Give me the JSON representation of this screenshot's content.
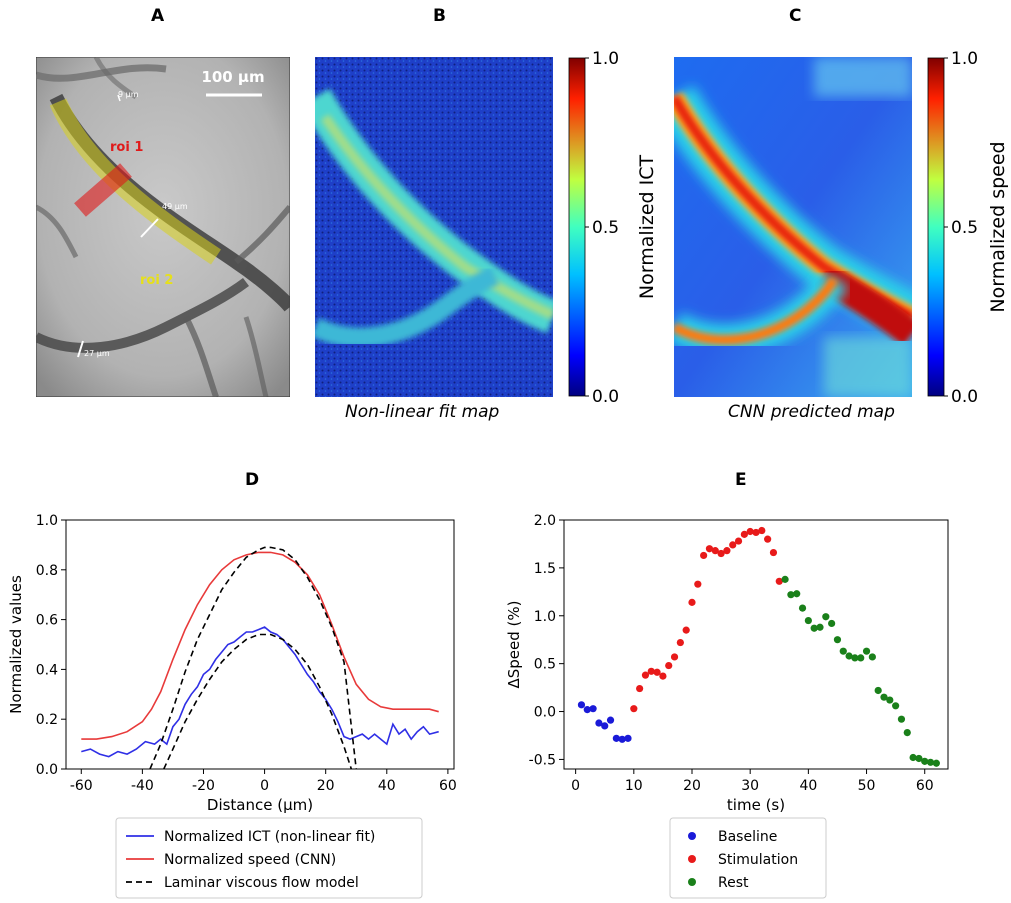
{
  "panels": {
    "A": {
      "letter": "A",
      "scale_bar": "100 µm",
      "roi1": "roi 1",
      "roi2": "roi 2",
      "diameters": [
        "9 µm",
        "49 µm",
        "27 µm"
      ]
    },
    "B": {
      "letter": "B",
      "caption": "Non-linear fit map",
      "colorbar": {
        "label": "Normalized ICT",
        "ticks": [
          "1.0",
          "0.5",
          "0.0"
        ]
      }
    },
    "C": {
      "letter": "C",
      "caption": "CNN predicted map",
      "colorbar": {
        "label": "Normalized speed",
        "ticks": [
          "1.0",
          "0.5",
          "0.0"
        ]
      }
    },
    "D": {
      "letter": "D"
    },
    "E": {
      "letter": "E"
    }
  },
  "colors": {
    "ict": "#2f2fe6",
    "speed": "#e83a3a",
    "model": "#000000",
    "baseline": "#1a1ad8",
    "stimulation": "#e81a1a",
    "rest": "#1a801a",
    "roi1": "#e01a1a",
    "roi2": "#e6e01a"
  },
  "chart_data": [
    {
      "id": "D",
      "type": "line",
      "xlabel": "Distance (µm)",
      "ylabel": "Normalized values",
      "xlim": [
        -65,
        62
      ],
      "ylim": [
        0,
        1.0
      ],
      "xticks": [
        -60,
        -40,
        -20,
        0,
        20,
        40,
        60
      ],
      "yticks": [
        0.0,
        0.2,
        0.4,
        0.6,
        0.8,
        1.0
      ],
      "legend_position": "below",
      "series": [
        {
          "name": "Normalized ICT (non-linear fit)",
          "style": "solid",
          "x": [
            -60,
            -57,
            -54,
            -51,
            -48,
            -45,
            -42,
            -39,
            -36,
            -34,
            -32,
            -30,
            -28,
            -26,
            -24,
            -22,
            -20,
            -18,
            -16,
            -14,
            -12,
            -10,
            -8,
            -6,
            -4,
            -2,
            0,
            2,
            4,
            6,
            8,
            10,
            12,
            14,
            16,
            18,
            20,
            22,
            24,
            26,
            28,
            30,
            32,
            34,
            36,
            38,
            40,
            42,
            44,
            46,
            48,
            50,
            52,
            54,
            57
          ],
          "y": [
            0.07,
            0.08,
            0.06,
            0.05,
            0.07,
            0.06,
            0.08,
            0.11,
            0.1,
            0.12,
            0.1,
            0.17,
            0.2,
            0.26,
            0.3,
            0.33,
            0.38,
            0.4,
            0.44,
            0.47,
            0.5,
            0.51,
            0.53,
            0.55,
            0.55,
            0.56,
            0.57,
            0.55,
            0.54,
            0.52,
            0.49,
            0.46,
            0.42,
            0.38,
            0.35,
            0.31,
            0.28,
            0.24,
            0.19,
            0.13,
            0.12,
            0.13,
            0.14,
            0.12,
            0.14,
            0.12,
            0.1,
            0.18,
            0.14,
            0.16,
            0.12,
            0.15,
            0.17,
            0.14,
            0.15
          ]
        },
        {
          "name": "Normalized speed (CNN)",
          "style": "solid",
          "x": [
            -60,
            -55,
            -50,
            -45,
            -40,
            -37,
            -34,
            -30,
            -26,
            -22,
            -18,
            -14,
            -10,
            -6,
            -2,
            0,
            2,
            6,
            10,
            14,
            18,
            22,
            26,
            30,
            34,
            38,
            42,
            46,
            50,
            54,
            57
          ],
          "y": [
            0.12,
            0.12,
            0.13,
            0.15,
            0.19,
            0.24,
            0.31,
            0.44,
            0.56,
            0.66,
            0.74,
            0.8,
            0.84,
            0.86,
            0.87,
            0.87,
            0.87,
            0.86,
            0.83,
            0.78,
            0.7,
            0.58,
            0.45,
            0.34,
            0.28,
            0.25,
            0.24,
            0.24,
            0.24,
            0.24,
            0.23
          ]
        },
        {
          "name": "Laminar viscous flow model",
          "style": "dashed",
          "x": [
            -37.5,
            -34,
            -30,
            -26,
            -22,
            -18,
            -14,
            -10,
            -6,
            -2,
            0,
            2,
            6,
            10,
            14,
            18,
            22,
            26,
            30
          ],
          "y": [
            0.0,
            0.1,
            0.24,
            0.39,
            0.52,
            0.62,
            0.72,
            0.79,
            0.85,
            0.88,
            0.89,
            0.89,
            0.88,
            0.84,
            0.77,
            0.68,
            0.57,
            0.43,
            0.0
          ]
        },
        {
          "name": "",
          "style": "dashed",
          "x": [
            -33,
            -30,
            -26,
            -22,
            -18,
            -14,
            -10,
            -6,
            -2,
            0,
            2,
            6,
            10,
            14,
            18,
            22,
            26,
            30,
            32
          ],
          "y": [
            0.0,
            0.08,
            0.19,
            0.28,
            0.36,
            0.43,
            0.48,
            0.52,
            0.54,
            0.54,
            0.54,
            0.52,
            0.48,
            0.42,
            0.33,
            0.22,
            0.09,
            -0.06,
            -0.14
          ]
        }
      ]
    },
    {
      "id": "E",
      "type": "scatter",
      "xlabel": "time (s)",
      "ylabel": "ΔSpeed (%)",
      "xlim": [
        -2,
        64
      ],
      "ylim": [
        -0.6,
        2.0
      ],
      "xticks": [
        0,
        10,
        20,
        30,
        40,
        50,
        60
      ],
      "yticks": [
        -0.5,
        0.0,
        0.5,
        1.0,
        1.5,
        2.0
      ],
      "legend_position": "below",
      "series": [
        {
          "name": "Baseline",
          "x": [
            1,
            2,
            3,
            4,
            5,
            6,
            7,
            8,
            9
          ],
          "y": [
            0.07,
            0.02,
            0.03,
            -0.12,
            -0.15,
            -0.09,
            -0.28,
            -0.29,
            -0.28
          ]
        },
        {
          "name": "Stimulation",
          "x": [
            10,
            11,
            12,
            13,
            14,
            15,
            16,
            17,
            18,
            19,
            20,
            21,
            22,
            23,
            24,
            25,
            26,
            27,
            28,
            29,
            30,
            31,
            32,
            33,
            34,
            35
          ],
          "y": [
            0.03,
            0.24,
            0.38,
            0.42,
            0.41,
            0.37,
            0.48,
            0.57,
            0.72,
            0.85,
            1.14,
            1.33,
            1.63,
            1.7,
            1.68,
            1.65,
            1.68,
            1.74,
            1.78,
            1.85,
            1.88,
            1.87,
            1.89,
            1.8,
            1.66,
            1.36
          ]
        },
        {
          "name": "Rest",
          "x": [
            36,
            37,
            38,
            39,
            40,
            41,
            42,
            43,
            44,
            45,
            46,
            47,
            48,
            49,
            50,
            51,
            52,
            53,
            54,
            55,
            56,
            57,
            58,
            59,
            60,
            61,
            62
          ],
          "y": [
            1.38,
            1.22,
            1.23,
            1.08,
            0.95,
            0.87,
            0.88,
            0.99,
            0.92,
            0.75,
            0.63,
            0.58,
            0.56,
            0.56,
            0.63,
            0.57,
            0.22,
            0.15,
            0.12,
            0.06,
            -0.08,
            -0.22,
            -0.48,
            -0.49,
            -0.52,
            -0.53,
            -0.54
          ]
        }
      ]
    }
  ]
}
